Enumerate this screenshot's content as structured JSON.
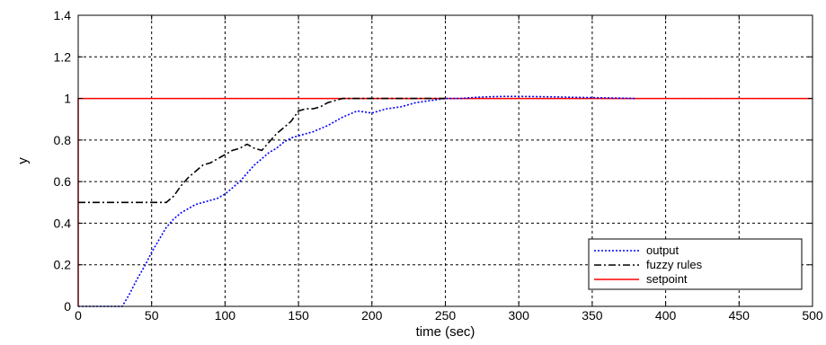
{
  "chart_data": {
    "type": "line",
    "xlabel": "time (sec)",
    "ylabel": "y",
    "xlim": [
      0,
      500
    ],
    "ylim": [
      0,
      1.4
    ],
    "xticks": [
      0,
      50,
      100,
      150,
      200,
      250,
      300,
      350,
      400,
      450,
      500
    ],
    "yticks": [
      0,
      0.2,
      0.4,
      0.6,
      0.8,
      1,
      1.2,
      1.4
    ],
    "xtick_labels": [
      "0",
      "50",
      "100",
      "150",
      "200",
      "250",
      "300",
      "350",
      "400",
      "450",
      "500"
    ],
    "ytick_labels": [
      "0",
      "0.2",
      "0.4",
      "0.6",
      "0.8",
      "1",
      "1.2",
      "1.4"
    ],
    "grid": true,
    "legend_position": "bottom-right",
    "series": [
      {
        "name": "output",
        "color": "#0000ff",
        "style": "dotted",
        "x": [
          0,
          30,
          35,
          40,
          45,
          50,
          55,
          60,
          65,
          70,
          75,
          80,
          85,
          90,
          95,
          100,
          105,
          110,
          115,
          120,
          125,
          130,
          135,
          140,
          145,
          150,
          160,
          170,
          180,
          190,
          200,
          210,
          220,
          230,
          240,
          250,
          260,
          270,
          280,
          290,
          300,
          320,
          340,
          360,
          380
        ],
        "y": [
          0,
          0,
          0.06,
          0.13,
          0.19,
          0.26,
          0.32,
          0.38,
          0.42,
          0.45,
          0.47,
          0.49,
          0.5,
          0.51,
          0.52,
          0.54,
          0.57,
          0.6,
          0.64,
          0.68,
          0.71,
          0.74,
          0.76,
          0.79,
          0.81,
          0.82,
          0.84,
          0.87,
          0.91,
          0.94,
          0.93,
          0.95,
          0.96,
          0.98,
          0.99,
          1.0,
          1.0,
          1.005,
          1.008,
          1.01,
          1.01,
          1.008,
          1.005,
          1.003,
          1.0
        ]
      },
      {
        "name": "fuzzy rules",
        "color": "#000000",
        "style": "dashdot",
        "x": [
          0,
          60,
          65,
          70,
          75,
          80,
          85,
          90,
          95,
          100,
          105,
          110,
          115,
          120,
          125,
          130,
          135,
          140,
          145,
          150,
          155,
          160,
          165,
          170,
          175,
          180,
          190,
          200,
          220,
          250
        ],
        "y": [
          0.5,
          0.5,
          0.53,
          0.58,
          0.62,
          0.65,
          0.68,
          0.69,
          0.71,
          0.73,
          0.75,
          0.76,
          0.78,
          0.76,
          0.75,
          0.79,
          0.83,
          0.86,
          0.89,
          0.94,
          0.95,
          0.95,
          0.96,
          0.98,
          0.99,
          1.0,
          1.0,
          1.0,
          1.0,
          1.0
        ]
      },
      {
        "name": "setpoint",
        "color": "#ff0000",
        "style": "solid",
        "x": [
          0,
          0,
          500
        ],
        "y": [
          0,
          1,
          1
        ]
      }
    ]
  }
}
